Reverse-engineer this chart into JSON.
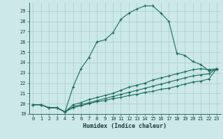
{
  "xlabel": "Humidex (Indice chaleur)",
  "bg_color": "#cce8e8",
  "grid_color": "#aacccc",
  "line_color": "#1a6b5a",
  "xlim": [
    -0.5,
    23.5
  ],
  "ylim": [
    19,
    29.8
  ],
  "yticks": [
    19,
    20,
    21,
    22,
    23,
    24,
    25,
    26,
    27,
    28,
    29
  ],
  "xticks": [
    0,
    1,
    2,
    3,
    4,
    5,
    6,
    7,
    8,
    9,
    10,
    11,
    12,
    13,
    14,
    15,
    16,
    17,
    18,
    19,
    20,
    21,
    22,
    23
  ],
  "curve1_x": [
    0,
    1,
    2,
    3,
    4,
    5,
    6,
    7,
    8,
    9,
    10,
    11,
    12,
    13,
    14,
    15,
    16,
    17,
    18,
    19,
    20,
    21,
    22,
    23
  ],
  "curve1_y": [
    19.9,
    19.9,
    19.6,
    19.6,
    19.2,
    21.6,
    23.4,
    24.5,
    26.0,
    26.2,
    26.9,
    28.2,
    28.8,
    29.2,
    29.5,
    29.5,
    28.8,
    28.0,
    24.9,
    24.7,
    24.1,
    23.8,
    23.2,
    23.3
  ],
  "curve2_x": [
    0,
    1,
    2,
    3,
    4,
    5,
    6,
    7,
    8,
    9,
    10,
    11,
    12,
    13,
    14,
    15,
    16,
    17,
    18,
    19,
    20,
    21,
    22,
    23
  ],
  "curve2_y": [
    19.9,
    19.9,
    19.6,
    19.6,
    19.2,
    19.9,
    20.1,
    20.4,
    20.6,
    20.8,
    21.0,
    21.3,
    21.6,
    21.8,
    22.0,
    22.3,
    22.5,
    22.7,
    22.9,
    23.1,
    23.3,
    23.4,
    23.3,
    23.4
  ],
  "curve3_x": [
    0,
    1,
    2,
    3,
    4,
    5,
    6,
    7,
    8,
    9,
    10,
    11,
    12,
    13,
    14,
    15,
    16,
    17,
    18,
    19,
    20,
    21,
    22,
    23
  ],
  "curve3_y": [
    19.9,
    19.9,
    19.6,
    19.6,
    19.2,
    19.7,
    19.9,
    20.1,
    20.3,
    20.5,
    20.7,
    20.9,
    21.1,
    21.3,
    21.5,
    21.7,
    21.9,
    22.1,
    22.3,
    22.5,
    22.7,
    22.8,
    22.9,
    23.4
  ],
  "curve4_x": [
    0,
    1,
    2,
    3,
    4,
    5,
    6,
    7,
    8,
    9,
    10,
    11,
    12,
    13,
    14,
    15,
    16,
    17,
    18,
    19,
    20,
    21,
    22,
    23
  ],
  "curve4_y": [
    19.9,
    19.9,
    19.6,
    19.6,
    19.2,
    19.6,
    19.8,
    20.0,
    20.2,
    20.3,
    20.5,
    20.6,
    20.8,
    20.9,
    21.1,
    21.2,
    21.4,
    21.5,
    21.7,
    21.9,
    22.1,
    22.2,
    22.4,
    23.4
  ]
}
